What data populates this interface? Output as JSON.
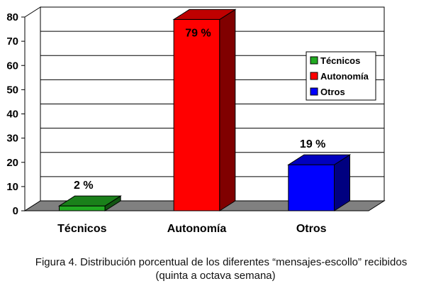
{
  "chart_data": {
    "type": "bar",
    "categories": [
      "Técnicos",
      "Autonomía",
      "Otros"
    ],
    "values": [
      2,
      79,
      19
    ],
    "data_labels": [
      "2 %",
      "79 %",
      "19 %"
    ],
    "colors": [
      "#22aa22",
      "#ff0000",
      "#0000ff"
    ],
    "ylim": [
      0,
      80
    ],
    "yticks": [
      "0",
      "10",
      "20",
      "30",
      "40",
      "50",
      "60",
      "70",
      "80"
    ],
    "grid": true,
    "three_d": true,
    "legend": {
      "placement": "right",
      "entries": [
        "Técnicos",
        "Autonomía",
        "Otros"
      ]
    }
  },
  "caption": {
    "line1": "Figura 4. Distribución porcentual de los diferentes “mensajes-escollo” recibidos",
    "line2": "(quinta a octava semana)"
  }
}
